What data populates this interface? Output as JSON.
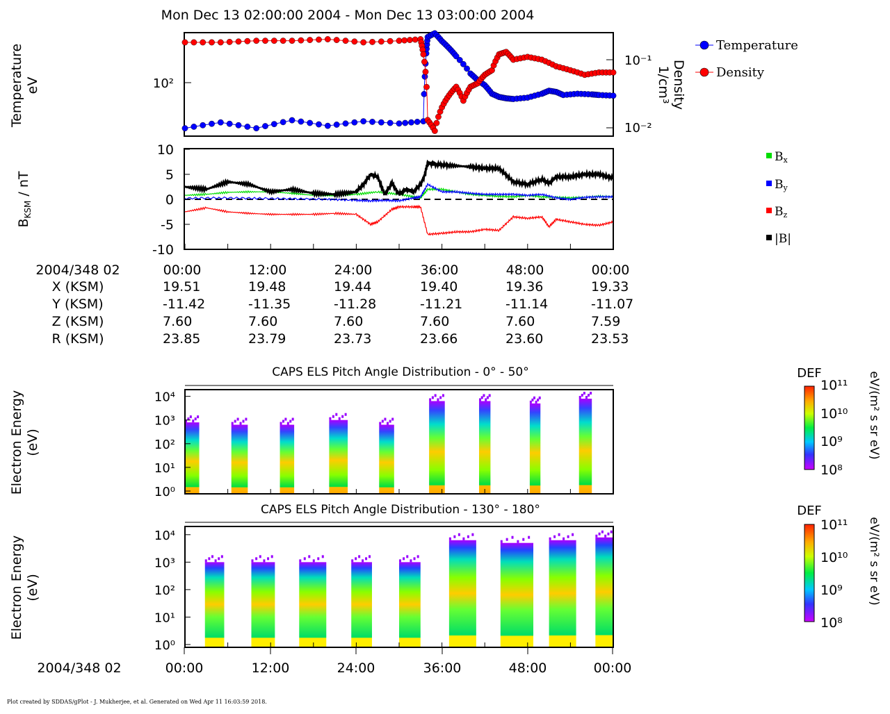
{
  "header": {
    "title": "Mon Dec 13 02:00:00 2004 - Mon Dec 13 03:00:00 2004"
  },
  "panel1": {
    "ylabel_left_line1": "Temperature",
    "ylabel_left_line2": "eV",
    "ylabel_right_line1": "Density",
    "ylabel_right_line2": "1/cm³",
    "left_tick": "10²",
    "right_ticks": [
      "10⁻¹",
      "10⁻²"
    ],
    "legend": [
      {
        "label": "Temperature",
        "color": "#0000ff"
      },
      {
        "label": "Density",
        "color": "#ff0000"
      }
    ]
  },
  "panel2": {
    "ylabel": "B_KSM / nT",
    "yticks": [
      "10",
      "5",
      "0",
      "-5",
      "-10"
    ],
    "ylim": [
      -10,
      10
    ],
    "legend": [
      {
        "label": "Bx",
        "color": "#00dd00"
      },
      {
        "label": "By",
        "color": "#0000ff"
      },
      {
        "label": "Bz",
        "color": "#ff0000"
      },
      {
        "label": "|B|",
        "color": "#000000"
      }
    ]
  },
  "ephemeris": {
    "date_label": "2004/348 02",
    "times": [
      "00:00",
      "12:00",
      "24:00",
      "36:00",
      "48:00",
      "00:00"
    ],
    "rows": [
      {
        "label": "X (KSM)",
        "values": [
          "19.51",
          "19.48",
          "19.44",
          "19.40",
          "19.36",
          "19.33"
        ]
      },
      {
        "label": "Y (KSM)",
        "values": [
          "-11.42",
          "-11.35",
          "-11.28",
          "-11.21",
          "-11.14",
          "-11.07"
        ]
      },
      {
        "label": "Z (KSM)",
        "values": [
          "7.60",
          "7.60",
          "7.60",
          "7.60",
          "7.60",
          "7.59"
        ]
      },
      {
        "label": "R (KSM)",
        "values": [
          "23.85",
          "23.79",
          "23.73",
          "23.66",
          "23.60",
          "23.53"
        ]
      }
    ]
  },
  "spectrogram1": {
    "title": "CAPS ELS Pitch Angle Distribution - 0° - 50°",
    "ylabel_line1": "Electron Energy",
    "ylabel_line2": "(eV)",
    "yticks": [
      "10⁴",
      "10³",
      "10²",
      "10¹",
      "10⁰"
    ],
    "colorbar_title": "DEF",
    "colorbar_ticks": [
      "10¹¹",
      "10¹⁰",
      "10⁹",
      "10⁸"
    ],
    "colorbar_unit": "eV/(m² s sr eV)"
  },
  "spectrogram2": {
    "title": "CAPS ELS Pitch Angle Distribution - 130° - 180°",
    "ylabel_line1": "Electron Energy",
    "ylabel_line2": "(eV)",
    "yticks": [
      "10⁴",
      "10³",
      "10²",
      "10¹",
      "10⁰"
    ],
    "colorbar_title": "DEF",
    "colorbar_ticks": [
      "10¹¹",
      "10¹⁰",
      "10⁹",
      "10⁸"
    ],
    "colorbar_unit": "eV/(m² s sr eV)"
  },
  "bottom_axis": {
    "date_label": "2004/348 02",
    "times": [
      "00:00",
      "12:00",
      "24:00",
      "36:00",
      "48:00",
      "00:00"
    ]
  },
  "footer": {
    "text": "Plot created by SDDAS/gPlot - J. Mukherjee, et al.  Generated on Wed Apr 11 16:03:59 2018."
  },
  "chart_data": [
    {
      "type": "line",
      "panel": "plasma moments",
      "x_unit": "minutes after 02:00",
      "xlim": [
        0,
        60
      ],
      "series": [
        {
          "name": "Temperature",
          "color": "#0000ff",
          "y_scale": "log",
          "x": [
            0,
            5,
            10,
            15,
            20,
            25,
            30,
            33.4,
            33.8,
            34,
            35,
            36,
            37,
            38,
            40,
            41,
            42,
            43,
            44,
            45,
            46,
            48,
            50,
            51,
            52,
            53,
            55,
            57,
            58,
            60
          ],
          "values": [
            40,
            45,
            40,
            47,
            42,
            46,
            44,
            46,
            180,
            250,
            270,
            230,
            200,
            170,
            120,
            105,
            95,
            80,
            75,
            73,
            72,
            74,
            80,
            85,
            83,
            78,
            80,
            79,
            78,
            77
          ]
        },
        {
          "name": "Density",
          "color": "#ff0000",
          "y_scale": "log",
          "x": [
            0,
            5,
            10,
            15,
            20,
            25,
            30,
            33,
            33.4,
            34,
            35,
            36,
            37,
            38,
            39,
            40,
            41,
            42,
            43,
            44,
            45,
            46,
            48,
            50,
            52,
            54,
            56,
            58,
            60
          ],
          "values": [
            0.18,
            0.18,
            0.19,
            0.19,
            0.2,
            0.18,
            0.19,
            0.2,
            0.12,
            0.013,
            0.009,
            0.02,
            0.03,
            0.04,
            0.025,
            0.04,
            0.045,
            0.06,
            0.07,
            0.12,
            0.13,
            0.1,
            0.11,
            0.1,
            0.08,
            0.07,
            0.06,
            0.065,
            0.065
          ]
        }
      ]
    },
    {
      "type": "line",
      "panel": "magnetic field",
      "x_unit": "minutes after 02:00",
      "xlim": [
        0,
        60
      ],
      "ylim": [
        -10,
        10
      ],
      "ylabel": "B_KSM / nT",
      "series": [
        {
          "name": "Bx",
          "color": "#00dd00",
          "x": [
            0,
            3,
            6,
            9,
            12,
            15,
            18,
            21,
            24,
            27,
            30,
            33,
            34,
            36,
            38,
            40,
            42,
            44,
            46,
            48,
            50,
            52,
            54,
            56,
            58,
            60
          ],
          "values": [
            0.8,
            1.0,
            1.4,
            1.5,
            1.5,
            1.2,
            0.8,
            0.7,
            1.0,
            1.5,
            1.0,
            0.3,
            2.0,
            2.0,
            1.5,
            1.0,
            0.8,
            0.6,
            0.5,
            0.8,
            0.5,
            0.4,
            0.3,
            0.4,
            0.6,
            0.5
          ]
        },
        {
          "name": "By",
          "color": "#0000ff",
          "x": [
            0,
            5,
            10,
            15,
            20,
            24,
            26,
            28,
            30,
            32,
            33,
            34,
            36,
            38,
            40,
            42,
            44,
            46,
            48,
            50,
            52,
            54,
            56,
            58,
            60
          ],
          "values": [
            0.2,
            0.3,
            0.2,
            0.1,
            0.0,
            -0.2,
            -0.3,
            -0.2,
            -0.3,
            0.3,
            0.5,
            3.0,
            1.5,
            1.5,
            1.2,
            1.0,
            1.0,
            1.0,
            0.8,
            1.0,
            0.3,
            0.0,
            0.4,
            0.5,
            0.5
          ]
        },
        {
          "name": "Bz",
          "color": "#ff0000",
          "x": [
            0,
            3,
            6,
            9,
            12,
            15,
            18,
            21,
            24,
            26,
            27,
            29,
            30,
            32,
            33,
            34,
            36,
            38,
            40,
            42,
            44,
            46,
            48,
            50,
            51,
            52,
            54,
            56,
            58,
            60
          ],
          "values": [
            -2.5,
            -1.7,
            -2.5,
            -2.8,
            -3.0,
            -3.0,
            -3.0,
            -2.8,
            -3.0,
            -5.0,
            -4.5,
            -2.0,
            -1.5,
            -1.5,
            -1.5,
            -7.0,
            -6.8,
            -6.5,
            -6.5,
            -6.0,
            -6.2,
            -3.5,
            -3.8,
            -3.5,
            -5.5,
            -4.0,
            -4.5,
            -5.0,
            -5.2,
            -4.5
          ]
        },
        {
          "name": "|B|",
          "color": "#000000",
          "x": [
            0,
            3,
            6,
            9,
            12,
            15,
            18,
            21,
            24,
            25,
            26,
            27,
            28,
            29,
            30,
            31,
            32,
            33,
            33.5,
            34,
            35,
            37,
            40,
            42,
            44,
            46,
            48,
            50,
            51,
            52,
            54,
            56,
            58,
            60
          ],
          "values": [
            2.5,
            2.0,
            3.5,
            3.0,
            1.5,
            2.0,
            1.2,
            1.0,
            1.5,
            3.0,
            5.0,
            4.5,
            1.0,
            3.2,
            1.0,
            2.0,
            1.5,
            3.0,
            4.5,
            7.3,
            7.0,
            6.8,
            6.5,
            6.2,
            6.2,
            3.5,
            3.0,
            4.0,
            3.2,
            4.5,
            4.5,
            5.0,
            5.0,
            4.2
          ]
        }
      ]
    },
    {
      "type": "heatmap",
      "panel": "CAPS ELS Pitch Angle Distribution - 0° - 50°",
      "x_unit": "minutes after 02:00",
      "y_unit": "eV (log)",
      "z_unit": "DEF eV/(m² s sr eV), log10",
      "zlim_log10": [
        8,
        11
      ],
      "blocks": [
        {
          "x": [
            0,
            2
          ],
          "ymax_log10": 2.9
        },
        {
          "x": [
            6.5,
            8.8
          ],
          "ymax_log10": 2.8
        },
        {
          "x": [
            13.3,
            15.3
          ],
          "ymax_log10": 2.8
        },
        {
          "x": [
            20.2,
            22.8
          ],
          "ymax_log10": 3.0
        },
        {
          "x": [
            27.2,
            29.3
          ],
          "ymax_log10": 2.8
        },
        {
          "x": [
            34.2,
            36.4
          ],
          "ymax_log10": 3.8
        },
        {
          "x": [
            41.2,
            42.8
          ],
          "ymax_log10": 3.8
        },
        {
          "x": [
            48.3,
            49.8
          ],
          "ymax_log10": 3.7
        },
        {
          "x": [
            55.2,
            57.0
          ],
          "ymax_log10": 3.9
        }
      ]
    },
    {
      "type": "heatmap",
      "panel": "CAPS ELS Pitch Angle Distribution - 130° - 180°",
      "x_unit": "minutes after 02:00",
      "y_unit": "eV (log)",
      "z_unit": "DEF eV/(m² s sr eV), log10",
      "zlim_log10": [
        8,
        11
      ],
      "blocks": [
        {
          "x": [
            2.8,
            5.5
          ],
          "ymax_log10": 3.0
        },
        {
          "x": [
            9.3,
            12.6
          ],
          "ymax_log10": 3.0
        },
        {
          "x": [
            16.0,
            19.8
          ],
          "ymax_log10": 3.0
        },
        {
          "x": [
            23.3,
            26.2
          ],
          "ymax_log10": 3.0
        },
        {
          "x": [
            30.0,
            33.0
          ],
          "ymax_log10": 3.0
        },
        {
          "x": [
            37.0,
            40.8
          ],
          "ymax_log10": 3.8
        },
        {
          "x": [
            44.2,
            48.8
          ],
          "ymax_log10": 3.7
        },
        {
          "x": [
            51.0,
            54.8
          ],
          "ymax_log10": 3.8
        },
        {
          "x": [
            57.5,
            60.0
          ],
          "ymax_log10": 3.9
        }
      ]
    }
  ]
}
